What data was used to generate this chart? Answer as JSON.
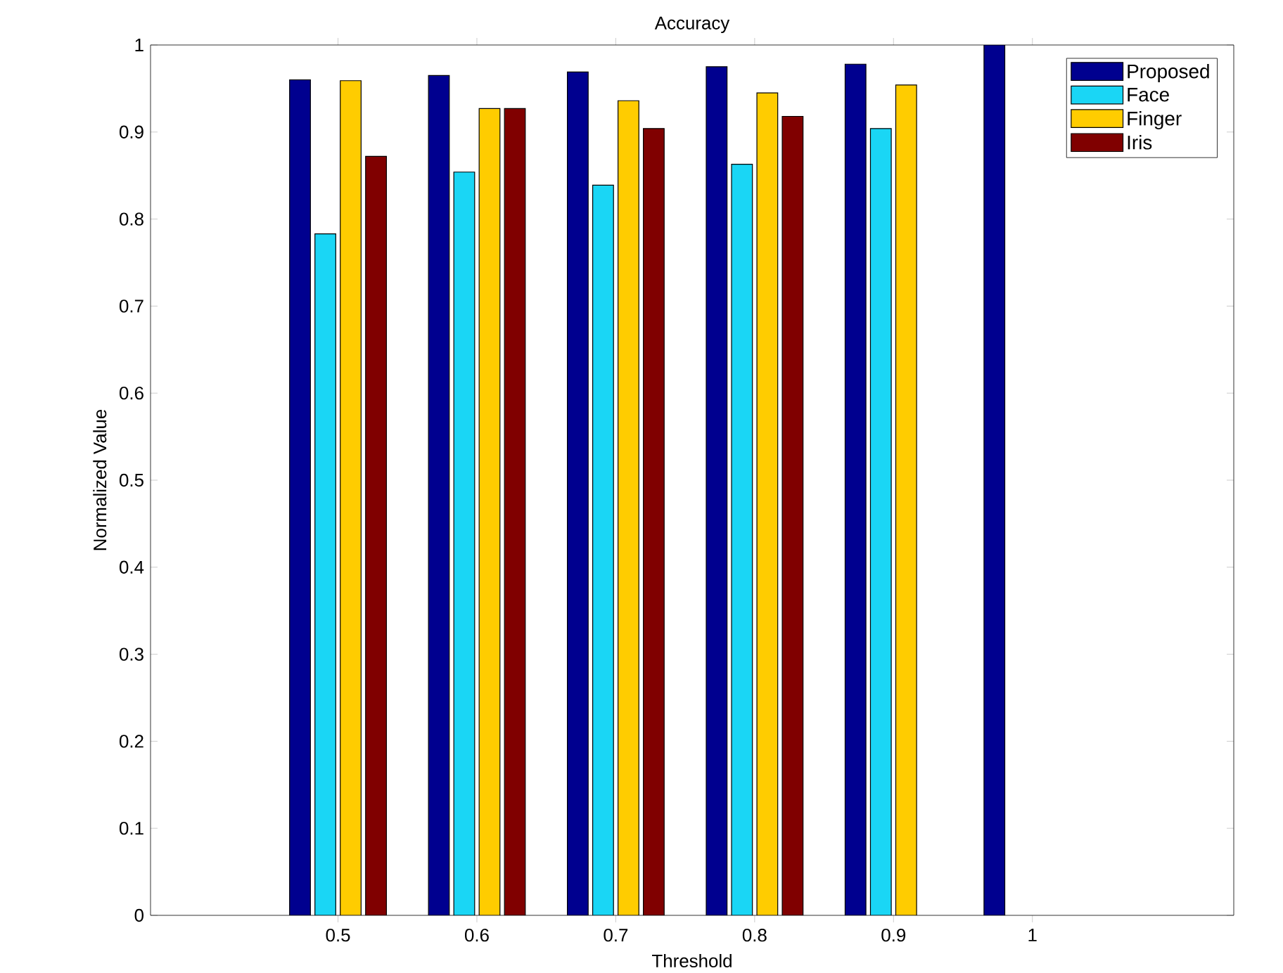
{
  "chart_data": {
    "type": "bar",
    "title": "Accuracy",
    "xlabel": "Threshold",
    "ylabel": "Normalized Value",
    "categories": [
      "0.5",
      "0.6",
      "0.7",
      "0.8",
      "0.9",
      "1"
    ],
    "series": [
      {
        "name": "Proposed",
        "color": "#00008f",
        "values": [
          0.96,
          0.965,
          0.969,
          0.975,
          0.978,
          1.0
        ]
      },
      {
        "name": "Face",
        "color": "#1ad6f5",
        "values": [
          0.783,
          0.854,
          0.839,
          0.863,
          0.904,
          null
        ]
      },
      {
        "name": "Finger",
        "color": "#ffcc00",
        "values": [
          0.959,
          0.927,
          0.936,
          0.945,
          0.954,
          null
        ]
      },
      {
        "name": "Iris",
        "color": "#800000",
        "values": [
          0.872,
          0.927,
          0.904,
          0.918,
          null,
          null
        ]
      }
    ],
    "ylim": [
      0,
      1
    ],
    "yticks": [
      0,
      0.1,
      0.2,
      0.3,
      0.4,
      0.5,
      0.6,
      0.7,
      0.8,
      0.9,
      1
    ],
    "legend": "top right"
  }
}
